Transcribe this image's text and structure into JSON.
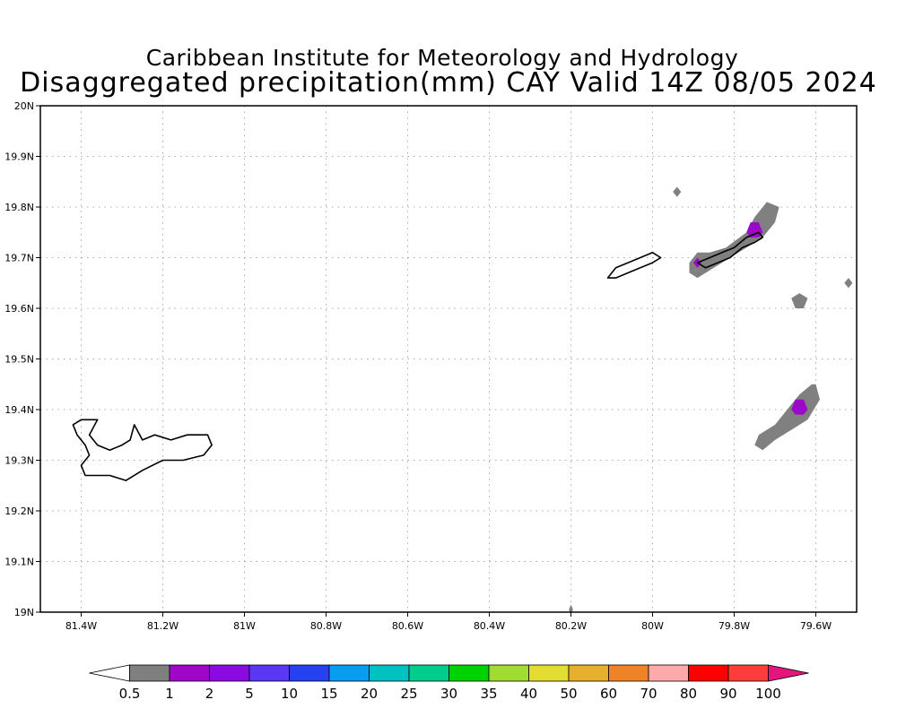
{
  "header": {
    "institute": "Caribbean Institute for Meteorology and Hydrology",
    "product": "Disaggregated precipitation(mm) CAY Valid 14Z 08/05 2024"
  },
  "map": {
    "projection": "latlon",
    "lon_range": [
      -81.5,
      -79.5
    ],
    "lat_range": [
      19.0,
      20.0
    ],
    "grid": "dotted",
    "lat_ticks": [
      {
        "value": 20.0,
        "label": "20N"
      },
      {
        "value": 19.9,
        "label": "19.9N"
      },
      {
        "value": 19.8,
        "label": "19.8N"
      },
      {
        "value": 19.7,
        "label": "19.7N"
      },
      {
        "value": 19.6,
        "label": "19.6N"
      },
      {
        "value": 19.5,
        "label": "19.5N"
      },
      {
        "value": 19.4,
        "label": "19.4N"
      },
      {
        "value": 19.3,
        "label": "19.3N"
      },
      {
        "value": 19.2,
        "label": "19.2N"
      },
      {
        "value": 19.1,
        "label": "19.1N"
      },
      {
        "value": 19.0,
        "label": "19N"
      }
    ],
    "lon_ticks": [
      {
        "value": -81.4,
        "label": "81.4W"
      },
      {
        "value": -81.2,
        "label": "81.2W"
      },
      {
        "value": -81.0,
        "label": "81W"
      },
      {
        "value": -80.8,
        "label": "80.8W"
      },
      {
        "value": -80.6,
        "label": "80.6W"
      },
      {
        "value": -80.4,
        "label": "80.4W"
      },
      {
        "value": -80.2,
        "label": "80.2W"
      },
      {
        "value": -80.0,
        "label": "80W"
      },
      {
        "value": -79.8,
        "label": "79.8W"
      },
      {
        "value": -79.6,
        "label": "79.6W"
      }
    ],
    "islands": [
      {
        "name": "grand-cayman",
        "outline": [
          [
            -81.4,
            19.38
          ],
          [
            -81.36,
            19.38
          ],
          [
            -81.38,
            19.35
          ],
          [
            -81.36,
            19.33
          ],
          [
            -81.33,
            19.32
          ],
          [
            -81.3,
            19.33
          ],
          [
            -81.28,
            19.34
          ],
          [
            -81.27,
            19.37
          ],
          [
            -81.25,
            19.34
          ],
          [
            -81.22,
            19.35
          ],
          [
            -81.18,
            19.34
          ],
          [
            -81.14,
            19.35
          ],
          [
            -81.09,
            19.35
          ],
          [
            -81.08,
            19.33
          ],
          [
            -81.1,
            19.31
          ],
          [
            -81.15,
            19.3
          ],
          [
            -81.2,
            19.3
          ],
          [
            -81.25,
            19.28
          ],
          [
            -81.29,
            19.26
          ],
          [
            -81.33,
            19.27
          ],
          [
            -81.39,
            19.27
          ],
          [
            -81.4,
            19.29
          ],
          [
            -81.38,
            19.31
          ],
          [
            -81.39,
            19.33
          ],
          [
            -81.41,
            19.35
          ],
          [
            -81.42,
            19.37
          ]
        ]
      },
      {
        "name": "little-cayman",
        "outline": [
          [
            -80.11,
            19.66
          ],
          [
            -80.09,
            19.68
          ],
          [
            -80.06,
            19.69
          ],
          [
            -80.03,
            19.7
          ],
          [
            -80.0,
            19.71
          ],
          [
            -79.98,
            19.7
          ],
          [
            -80.0,
            19.69
          ],
          [
            -80.03,
            19.68
          ],
          [
            -80.06,
            19.67
          ],
          [
            -80.09,
            19.66
          ]
        ]
      },
      {
        "name": "cayman-brac",
        "outline": [
          [
            -79.89,
            19.69
          ],
          [
            -79.86,
            19.7
          ],
          [
            -79.83,
            19.71
          ],
          [
            -79.8,
            19.72
          ],
          [
            -79.77,
            19.74
          ],
          [
            -79.74,
            19.75
          ],
          [
            -79.73,
            19.74
          ],
          [
            -79.75,
            19.73
          ],
          [
            -79.78,
            19.72
          ],
          [
            -79.81,
            19.7
          ],
          [
            -79.84,
            19.69
          ],
          [
            -79.87,
            19.68
          ]
        ]
      }
    ],
    "precip_cells": [
      {
        "level": "0.5",
        "color": "#808080",
        "shape": [
          [
            -79.91,
            19.69
          ],
          [
            -79.89,
            19.71
          ],
          [
            -79.86,
            19.71
          ],
          [
            -79.82,
            19.72
          ],
          [
            -79.77,
            19.75
          ],
          [
            -79.75,
            19.78
          ],
          [
            -79.72,
            19.81
          ],
          [
            -79.69,
            19.8
          ],
          [
            -79.7,
            19.77
          ],
          [
            -79.73,
            19.74
          ],
          [
            -79.77,
            19.72
          ],
          [
            -79.81,
            19.7
          ],
          [
            -79.85,
            19.68
          ],
          [
            -79.89,
            19.66
          ],
          [
            -79.91,
            19.67
          ]
        ]
      },
      {
        "level": "0.5",
        "color": "#808080",
        "shape": [
          [
            -79.64,
            19.63
          ],
          [
            -79.62,
            19.62
          ],
          [
            -79.63,
            19.6
          ],
          [
            -79.65,
            19.6
          ],
          [
            -79.66,
            19.62
          ]
        ]
      },
      {
        "level": "0.5",
        "color": "#808080",
        "shape": [
          [
            -79.94,
            19.84
          ],
          [
            -79.93,
            19.83
          ],
          [
            -79.94,
            19.82
          ],
          [
            -79.95,
            19.83
          ]
        ]
      },
      {
        "level": "0.5",
        "color": "#808080",
        "shape": [
          [
            -79.52,
            19.66
          ],
          [
            -79.51,
            19.65
          ],
          [
            -79.52,
            19.64
          ],
          [
            -79.53,
            19.65
          ]
        ]
      },
      {
        "level": "0.5",
        "color": "#808080",
        "shape": [
          [
            -79.6,
            19.45
          ],
          [
            -79.59,
            19.42
          ],
          [
            -79.62,
            19.38
          ],
          [
            -79.66,
            19.36
          ],
          [
            -79.7,
            19.34
          ],
          [
            -79.73,
            19.32
          ],
          [
            -79.75,
            19.33
          ],
          [
            -79.74,
            19.35
          ],
          [
            -79.7,
            19.37
          ],
          [
            -79.67,
            19.4
          ],
          [
            -79.64,
            19.43
          ],
          [
            -79.61,
            19.45
          ]
        ]
      },
      {
        "level": "0.5",
        "color": "#808080",
        "shape": [
          [
            -80.2,
            19.015
          ],
          [
            -80.195,
            19.005
          ],
          [
            -80.2,
            18.995
          ],
          [
            -80.205,
            19.005
          ]
        ]
      },
      {
        "level": "1",
        "color": "#9a09c8",
        "shape": [
          [
            -79.77,
            19.75
          ],
          [
            -79.76,
            19.77
          ],
          [
            -79.74,
            19.77
          ],
          [
            -79.73,
            19.75
          ],
          [
            -79.74,
            19.74
          ],
          [
            -79.76,
            19.74
          ]
        ]
      },
      {
        "level": "1",
        "color": "#9a09c8",
        "shape": [
          [
            -79.9,
            19.69
          ],
          [
            -79.89,
            19.7
          ],
          [
            -79.88,
            19.69
          ],
          [
            -79.89,
            19.68
          ]
        ]
      },
      {
        "level": "1",
        "color": "#9a09c8",
        "shape": [
          [
            -79.66,
            19.4
          ],
          [
            -79.65,
            19.42
          ],
          [
            -79.63,
            19.42
          ],
          [
            -79.62,
            19.4
          ],
          [
            -79.63,
            19.39
          ],
          [
            -79.65,
            19.39
          ]
        ]
      }
    ]
  },
  "legend": {
    "colors": [
      "#ffffff",
      "#7f7f7f",
      "#a006c8",
      "#8a0be0",
      "#5a37f0",
      "#2642f0",
      "#0a9cf0",
      "#00c1c1",
      "#00cc8c",
      "#00d200",
      "#a1dc33",
      "#e3dc32",
      "#e6af2d",
      "#f08228",
      "#fcaaaa",
      "#ff0000",
      "#ff3c3c",
      "#e6147d"
    ],
    "labels": [
      "0.5",
      "1",
      "2",
      "5",
      "10",
      "15",
      "20",
      "25",
      "30",
      "35",
      "40",
      "50",
      "60",
      "70",
      "80",
      "90",
      "100"
    ]
  }
}
